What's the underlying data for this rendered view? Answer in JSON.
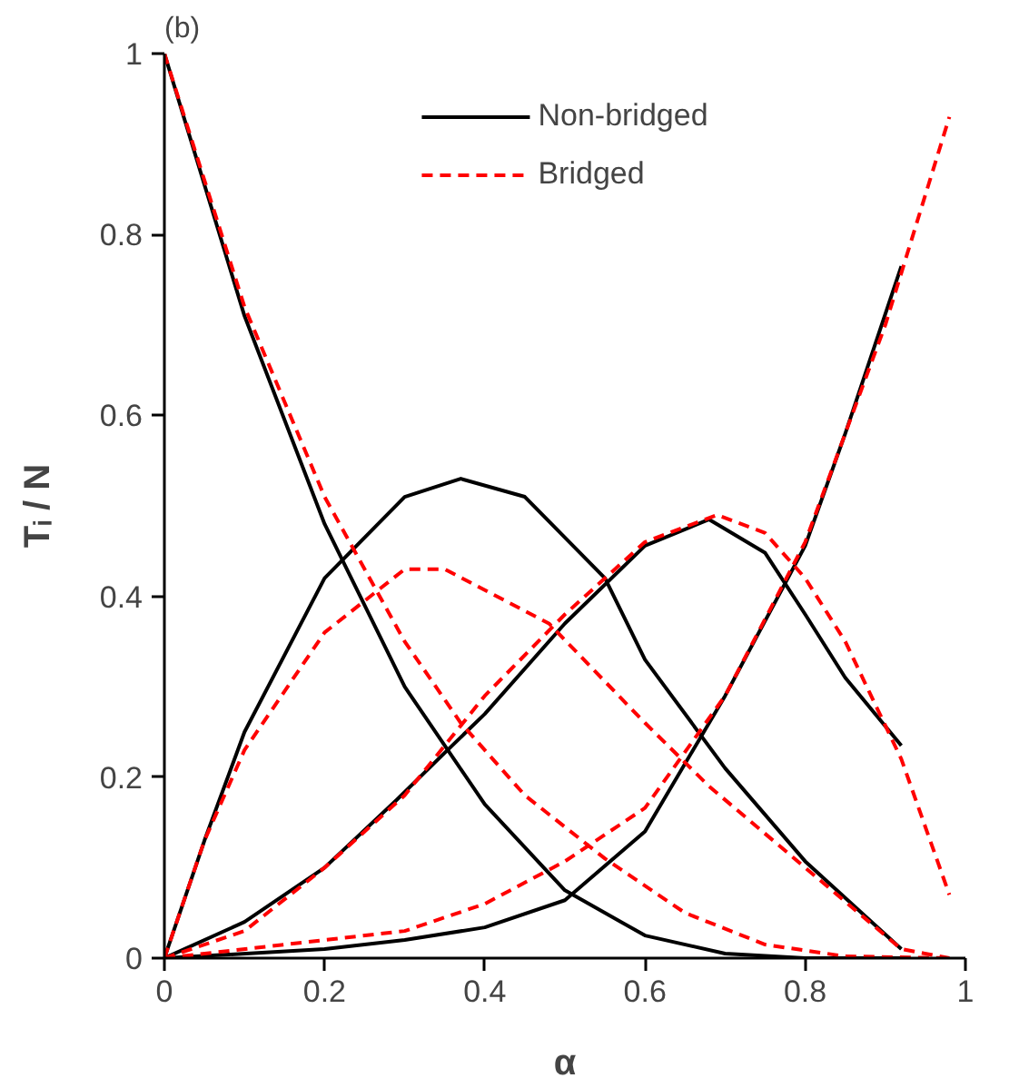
{
  "chart_data": {
    "type": "line",
    "title": "(b)",
    "xlabel": "α",
    "ylabel": "Tᵢ / N",
    "xlim": [
      0,
      1
    ],
    "ylim": [
      0,
      1
    ],
    "xticks": [
      0,
      0.2,
      0.4,
      0.6,
      0.8,
      1
    ],
    "yticks": [
      0,
      0.2,
      0.4,
      0.6,
      0.8,
      1
    ],
    "grid": false,
    "legend": "top",
    "marker": "none",
    "series": [
      {
        "name": "Non-bridged",
        "color": "#000000",
        "line_style": "solid",
        "x": [
          0,
          0.1,
          0.2,
          0.3,
          0.4,
          0.5,
          0.6,
          0.7,
          0.8,
          0.92
        ],
        "values": [
          1,
          0.71,
          0.48,
          0.3,
          0.17,
          0.075,
          0.025,
          0.005,
          0,
          0
        ]
      },
      {
        "color": "#000000",
        "line_style": "solid",
        "x": [
          0,
          0.05,
          0.1,
          0.2,
          0.3,
          0.37,
          0.45,
          0.55,
          0.6,
          0.7,
          0.8,
          0.92
        ],
        "values": [
          0,
          0.13,
          0.25,
          0.42,
          0.51,
          0.53,
          0.51,
          0.42,
          0.33,
          0.21,
          0.107,
          0.01
        ]
      },
      {
        "color": "#000000",
        "line_style": "solid",
        "x": [
          0,
          0.1,
          0.2,
          0.29,
          0.35,
          0.4,
          0.5,
          0.6,
          0.68,
          0.75,
          0.8,
          0.85,
          0.92
        ],
        "values": [
          0,
          0.04,
          0.1,
          0.175,
          0.227,
          0.27,
          0.37,
          0.456,
          0.485,
          0.448,
          0.38,
          0.31,
          0.235
        ]
      },
      {
        "color": "#000000",
        "line_style": "solid",
        "x": [
          0,
          0.2,
          0.3,
          0.4,
          0.5,
          0.6,
          0.7,
          0.8,
          0.85,
          0.92
        ],
        "values": [
          0,
          0.01,
          0.02,
          0.034,
          0.064,
          0.14,
          0.29,
          0.456,
          0.58,
          0.765
        ]
      },
      {
        "name": "Bridged",
        "color": "#ff0000",
        "line_style": "dashed",
        "x": [
          0,
          0.1,
          0.2,
          0.3,
          0.37,
          0.45,
          0.55,
          0.65,
          0.75,
          0.85,
          0.98
        ],
        "values": [
          1,
          0.72,
          0.51,
          0.35,
          0.26,
          0.18,
          0.11,
          0.05,
          0.015,
          0.002,
          0
        ]
      },
      {
        "color": "#ff0000",
        "line_style": "dashed",
        "x": [
          0,
          0.05,
          0.1,
          0.2,
          0.3,
          0.35,
          0.48,
          0.6,
          0.68,
          0.8,
          0.92,
          0.98
        ],
        "values": [
          0,
          0.13,
          0.23,
          0.36,
          0.43,
          0.43,
          0.37,
          0.26,
          0.19,
          0.1,
          0.01,
          0
        ]
      },
      {
        "color": "#ff0000",
        "line_style": "dashed",
        "x": [
          0,
          0.1,
          0.2,
          0.3,
          0.4,
          0.5,
          0.6,
          0.69,
          0.75,
          0.8,
          0.85,
          0.92,
          0.98
        ],
        "values": [
          0,
          0.03,
          0.1,
          0.18,
          0.29,
          0.38,
          0.46,
          0.49,
          0.47,
          0.42,
          0.35,
          0.22,
          0.07
        ]
      },
      {
        "color": "#ff0000",
        "line_style": "dashed",
        "x": [
          0,
          0.2,
          0.3,
          0.4,
          0.5,
          0.6,
          0.7,
          0.8,
          0.9,
          0.98
        ],
        "values": [
          0,
          0.02,
          0.03,
          0.06,
          0.107,
          0.166,
          0.29,
          0.46,
          0.7,
          0.93
        ]
      }
    ]
  }
}
